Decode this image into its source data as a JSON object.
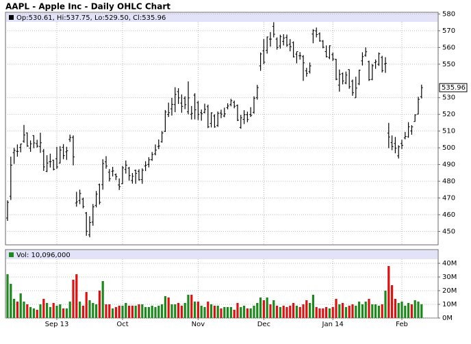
{
  "chart_data": [
    {
      "type": "ohlc",
      "title": "AAPL - Apple Inc - Daily OHLC Chart",
      "header": "Op:530.61, Hi:537.75, Lo:529.50, Cl:535.96",
      "color": "#000000",
      "grid": true,
      "categories": [
        null,
        null,
        null,
        null,
        null,
        null,
        null,
        null,
        null,
        null,
        null,
        null,
        null,
        null,
        null,
        "Sep 13",
        null,
        null,
        null,
        null,
        null,
        null,
        null,
        null,
        null,
        null,
        null,
        null,
        null,
        null,
        null,
        null,
        null,
        null,
        null,
        "Oct",
        null,
        null,
        null,
        null,
        null,
        null,
        null,
        null,
        null,
        null,
        null,
        null,
        null,
        null,
        null,
        null,
        null,
        null,
        null,
        null,
        null,
        null,
        "Nov",
        null,
        null,
        null,
        null,
        null,
        null,
        null,
        null,
        null,
        null,
        null,
        null,
        null,
        null,
        null,
        null,
        null,
        null,
        null,
        "Dec",
        null,
        null,
        null,
        null,
        null,
        null,
        null,
        null,
        null,
        null,
        null,
        null,
        null,
        null,
        null,
        null,
        null,
        null,
        null,
        null,
        "Jan 14",
        null,
        null,
        null,
        null,
        null,
        null,
        null,
        null,
        null,
        null,
        null,
        null,
        null,
        null,
        null,
        null,
        null,
        null,
        null,
        null,
        "Feb",
        null,
        null,
        null,
        null,
        null,
        null
      ],
      "open": [
        458.0,
        471.0,
        497.1,
        497.9,
        500.2,
        504.0,
        508.9,
        499.8,
        507.3,
        502.5,
        500.8,
        498.0,
        486.0,
        491.7,
        492.6,
        493.5,
        490.9,
        500.3,
        497.6,
        505.0,
        506.2,
        467.0,
        468.5,
        469.3,
        461.0,
        448.0,
        455.6,
        465.6,
        478.0,
        478.0,
        491.6,
        485.4,
        486.0,
        483.9,
        477.8,
        478.5,
        487.1,
        487.8,
        480.5,
        486.5,
        486.0,
        481.0,
        489.1,
        490.1,
        492.9,
        496.4,
        500.8,
        503.6,
        509.8,
        519.9,
        523.3,
        525.9,
        533.6,
        526.7,
        529.6,
        521.5,
        520.0,
        531.5,
        527.0,
        521.0,
        521.2,
        524.6,
        514.6,
        519.0,
        513.4,
        520.8,
        519.0,
        524.0,
        525.9,
        527.2,
        525.3,
        512.2,
        517.0,
        519.8,
        519.9,
        521.2,
        530.0,
        549.0,
        558.0,
        558.3,
        565.0,
        572.6,
        565.0,
        560.9,
        563.6,
        566.0,
        562.0,
        562.9,
        556.0,
        555.0,
        554.5,
        546.0,
        545.5,
        568.0,
        569.9,
        568.1,
        563.8,
        557.5,
        554.0,
        555.7,
        552.9,
        537.5,
        544.3,
        538.8,
        546.8,
        539.8,
        529.9,
        538.2,
        552.0,
        555.3,
        551.5,
        540.9,
        550.9,
        549.9,
        554.0,
        550.1,
        508.8,
        503.1,
        502.6,
        495.2,
        502.6,
        505.9,
        506.6,
        510.1,
        515.7,
        520.1,
        530.61
      ],
      "high": [
        468.6,
        494.7,
        500.0,
        502.0,
        502.5,
        513.7,
        509.2,
        504.4,
        507.5,
        504.8,
        509.0,
        499.3,
        495.6,
        496.5,
        492.9,
        500.6,
        501.0,
        502.2,
        500.6,
        507.9,
        507.4,
        473.7,
        475.0,
        470.2,
        461.6,
        459.1,
        466.4,
        474.2,
        478.6,
        493.2,
        495.0,
        487.3,
        488.6,
        484.7,
        481.7,
        489.1,
        492.4,
        488.6,
        484.9,
        487.0,
        487.2,
        487.7,
        492.0,
        494.4,
        497.5,
        502.0,
        505.0,
        510.0,
        522.6,
        527.0,
        529.9,
        536.2,
        535.6,
        531.9,
        530.8,
        539.7,
        525.0,
        532.6,
        528.0,
        522.9,
        526.4,
        525.8,
        521.2,
        520.0,
        521.7,
        522.8,
        524.0,
        526.6,
        529.3,
        528.2,
        525.9,
        519.7,
        522.5,
        521.6,
        524.3,
        530.8,
        537.6,
        557.0,
        565.0,
        566.5,
        569.2,
        575.1,
        566.0,
        567.6,
        567.9,
        567.7,
        565.0,
        563.6,
        557.5,
        557.2,
        555.4,
        547.8,
        551.0,
        570.9,
        571.9,
        569.0,
        564.4,
        561.2,
        561.3,
        557.0,
        553.2,
        546.8,
        545.0,
        545.6,
        546.9,
        540.8,
        542.5,
        546.7,
        557.1,
        560.0,
        552.1,
        550.1,
        552.8,
        557.0,
        555.0,
        554.2,
        514.9,
        507.4,
        506.5,
        501.5,
        504.8,
        509.5,
        515.3,
        513.5,
        520.0,
        530.5,
        537.75
      ],
      "low": [
        456.3,
        468.8,
        490.4,
        494.7,
        497.3,
        503.0,
        500.6,
        497.6,
        499.8,
        500.1,
        497.0,
        486.2,
        485.5,
        488.2,
        486.5,
        487.4,
        490.6,
        493.2,
        492.8,
        503.5,
        489.5,
        464.8,
        466.3,
        463.8,
        447.4,
        446.5,
        453.4,
        464.4,
        466.1,
        475.0,
        487.5,
        479.9,
        482.9,
        480.7,
        474.8,
        478.4,
        484.6,
        480.4,
        478.6,
        478.5,
        480.4,
        478.5,
        486.1,
        488.3,
        492.2,
        495.5,
        499.2,
        503.1,
        509.5,
        518.4,
        519.3,
        521.3,
        526.2,
        521.0,
        523.1,
        520.0,
        516.9,
        517.0,
        516.6,
        516.2,
        520.6,
        511.8,
        512.2,
        512.0,
        512.5,
        517.7,
        518.3,
        523.0,
        524.8,
        523.6,
        516.0,
        511.4,
        514.2,
        515.3,
        518.4,
        520.4,
        528.8,
        546.0,
        550.0,
        556.3,
        560.5,
        566.0,
        558.7,
        559.3,
        561.2,
        560.4,
        557.7,
        554.0,
        550.5,
        552.7,
        540.0,
        542.5,
        544.4,
        562.5,
        566.0,
        563.4,
        559.5,
        554.0,
        553.0,
        552.0,
        540.4,
        533.6,
        537.9,
        538.0,
        535.3,
        531.1,
        529.9,
        537.5,
        549.2,
        554.5,
        540.0,
        540.4,
        547.2,
        549.0,
        545.0,
        544.8,
        499.8,
        498.6,
        496.7,
        493.6,
        499.3,
        505.1,
        506.0,
        507.8,
        515.6,
        520.0,
        529.5
      ],
      "close": [
        467.4,
        489.6,
        498.5,
        497.9,
        502.3,
        507.7,
        501.1,
        502.4,
        502.9,
        501.0,
        503.0,
        488.6,
        490.9,
        491.7,
        487.2,
        488.6,
        498.7,
        495.3,
        498.2,
        506.2,
        494.6,
        467.7,
        472.7,
        464.9,
        450.1,
        455.3,
        464.7,
        472.3,
        467.4,
        490.6,
        489.1,
        481.5,
        486.2,
        482.8,
        476.8,
        488.0,
        489.6,
        483.4,
        483.0,
        484.7,
        480.9,
        486.6,
        489.6,
        492.8,
        496.0,
        498.7,
        501.1,
        508.9,
        521.4,
        521.0,
        526.0,
        531.9,
        529.9,
        524.8,
        525.8,
        529.9,
        520.6,
        522.7,
        520.0,
        520.4,
        523.0,
        512.5,
        520.9,
        512.5,
        520.6,
        520.1,
        520.3,
        525.0,
        528.2,
        524.9,
        516.5,
        518.0,
        519.8,
        516.9,
        519.5,
        529.6,
        536.0,
        556.1,
        551.2,
        566.3,
        565.0,
        567.9,
        560.0,
        566.4,
        565.6,
        561.4,
        560.5,
        554.4,
        557.5,
        555.0,
        550.8,
        544.5,
        549.0,
        570.1,
        567.7,
        563.9,
        560.1,
        554.5,
        561.0,
        553.1,
        541.0,
        543.9,
        540.0,
        543.5,
        536.5,
        532.9,
        535.7,
        546.4,
        554.5,
        557.4,
        540.7,
        549.1,
        551.5,
        556.2,
        546.1,
        550.5,
        506.5,
        500.8,
        499.8,
        500.6,
        501.5,
        506.8,
        512.6,
        512.5,
        519.7,
        529.0,
        535.96
      ],
      "ylim": [
        442,
        581
      ],
      "yticks": [
        450,
        460,
        470,
        480,
        490,
        500,
        510,
        520,
        530,
        550,
        560,
        570,
        580
      ]
    },
    {
      "type": "bar",
      "header": "Vol: 10,096,000",
      "up_color": "#1a8a1a",
      "down_color": "#e01010",
      "grid": true,
      "values": [
        32,
        25,
        14,
        12,
        18,
        12,
        10,
        8,
        7,
        6,
        10,
        14,
        11,
        8,
        11,
        9,
        10,
        7,
        7,
        12,
        28,
        32,
        12,
        9,
        19,
        13,
        11,
        10,
        20,
        27,
        10,
        10,
        7,
        8,
        9,
        9,
        11,
        9,
        9,
        9,
        10,
        10,
        8,
        8,
        9,
        8,
        9,
        10,
        16,
        15,
        10,
        10,
        11,
        9,
        11,
        17,
        17,
        12,
        12,
        9,
        8,
        12,
        10,
        9,
        9,
        7,
        8,
        8,
        8,
        6,
        11,
        8,
        9,
        7,
        7,
        9,
        11,
        15,
        13,
        15,
        10,
        13,
        9,
        8,
        9,
        8,
        9,
        11,
        9,
        8,
        10,
        13,
        11,
        17,
        8,
        7,
        7,
        8,
        7,
        8,
        14,
        10,
        11,
        8,
        9,
        10,
        9,
        12,
        10,
        12,
        14,
        10,
        10,
        9,
        10,
        20,
        38,
        24,
        14,
        11,
        12,
        9,
        11,
        10,
        13,
        12,
        10.096
      ],
      "ylim": [
        0,
        50
      ],
      "yticks": [
        {
          "value": 0,
          "label": "0M"
        },
        {
          "value": 10,
          "label": "10M"
        },
        {
          "value": 20,
          "label": "20M"
        },
        {
          "value": 30,
          "label": "30M"
        },
        {
          "value": 40,
          "label": "40M"
        }
      ]
    }
  ]
}
